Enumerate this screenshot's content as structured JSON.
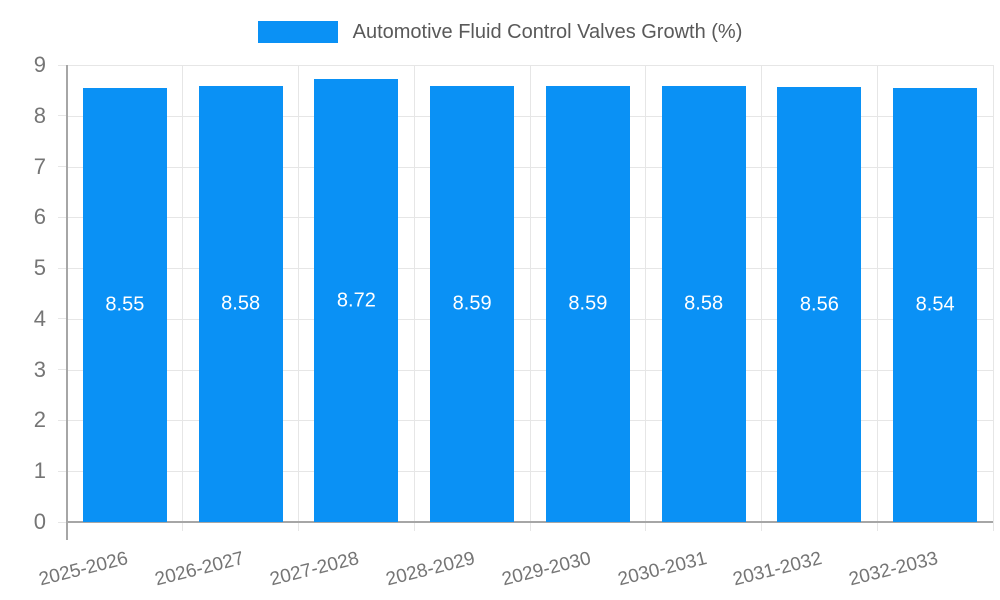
{
  "chart_data": {
    "type": "bar",
    "title": "Automotive Fluid Control Valves Growth (%)",
    "categories": [
      "2025-2026",
      "2026-2027",
      "2027-2028",
      "2028-2029",
      "2029-2030",
      "2030-2031",
      "2031-2032",
      "2032-2033"
    ],
    "values": [
      8.55,
      8.58,
      8.72,
      8.59,
      8.59,
      8.58,
      8.56,
      8.54
    ],
    "value_labels": [
      "8.55",
      "8.58",
      "8.72",
      "8.59",
      "8.59",
      "8.58",
      "8.56",
      "8.54"
    ],
    "xlabel": "",
    "ylabel": "",
    "ylim": [
      0,
      9
    ],
    "yticks": [
      0,
      1,
      2,
      3,
      4,
      5,
      6,
      7,
      8,
      9
    ],
    "grid": true,
    "legend_position": "top-center",
    "bar_label_position": "center",
    "colors": {
      "bar": "#0a91f5",
      "grid_line": "#e6e6e6",
      "axis_line": "#a6a6a6",
      "tick_label": "#757575",
      "title_text": "#595959",
      "bar_label": "#ffffff",
      "background": "#ffffff"
    }
  }
}
